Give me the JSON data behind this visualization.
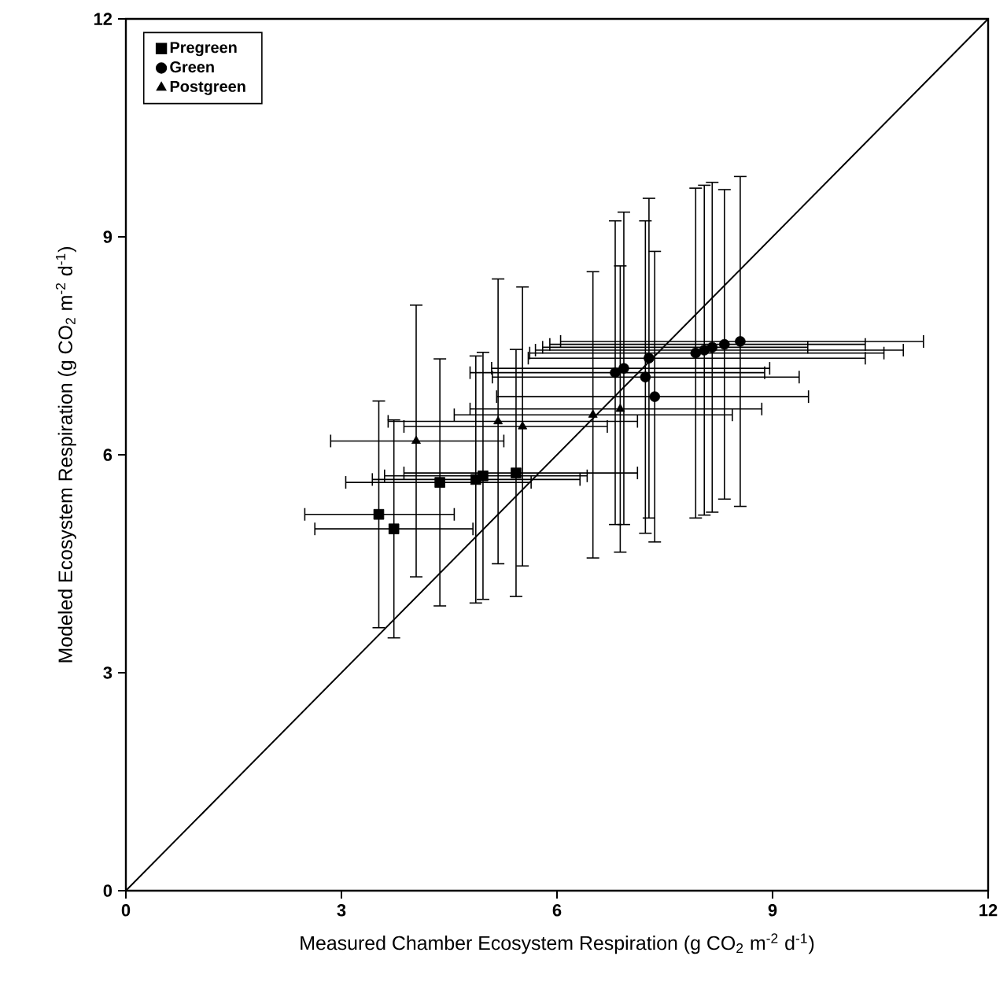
{
  "chart_data": {
    "type": "scatter",
    "xlabel": "Measured Chamber Ecosystem Respiration (g CO$_{2}$ m$^{-2}$ d$^{-1}$)",
    "ylabel": "Modeled Ecosystem Respiration (g CO$_{2}$ m$^{-2}$ d$^{-1}$)",
    "xlim": [
      0,
      12
    ],
    "ylim": [
      0,
      12
    ],
    "xticks": [
      0,
      3,
      6,
      9,
      12
    ],
    "yticks": [
      0,
      3,
      6,
      9,
      12
    ],
    "grid": false,
    "legend": "top left",
    "series": [
      {
        "name": "Pregreen",
        "color": "#000000",
        "marker": "square",
        "x": [
          3.52,
          3.73,
          4.37,
          4.87,
          4.97,
          5.43
        ],
        "values": [
          5.18,
          4.98,
          5.62,
          5.66,
          5.71,
          5.75
        ],
        "errors": [
          1.56,
          1.5,
          1.7,
          1.7,
          1.7,
          1.7
        ],
        "xerrors": [
          [
            2.49,
            4.57
          ],
          [
            2.63,
            4.83
          ],
          [
            3.06,
            5.64
          ],
          [
            3.43,
            6.32
          ],
          [
            3.6,
            6.42
          ],
          [
            3.87,
            7.12
          ]
        ]
      },
      {
        "name": "Green",
        "color": "#000000",
        "marker": "circle",
        "x": [
          6.81,
          6.93,
          7.23,
          7.28,
          7.36,
          7.93,
          8.05,
          8.16,
          8.33,
          8.55
        ],
        "values": [
          7.13,
          7.19,
          7.07,
          7.33,
          6.8,
          7.4,
          7.44,
          7.48,
          7.52,
          7.56
        ],
        "errors": [
          2.09,
          2.15,
          2.15,
          2.2,
          2.0,
          2.27,
          2.27,
          2.27,
          2.13,
          2.27
        ],
        "xerrors": [
          [
            4.79,
            8.89
          ],
          [
            5.09,
            8.96
          ],
          [
            5.1,
            9.37
          ],
          [
            5.6,
            10.29
          ],
          [
            5.16,
            9.5
          ],
          [
            5.62,
            10.55
          ],
          [
            5.7,
            10.82
          ],
          [
            5.8,
            9.49
          ],
          [
            5.9,
            10.29
          ],
          [
            6.05,
            11.1
          ]
        ]
      },
      {
        "name": "Postgreen",
        "color": "#000000",
        "marker": "triangle",
        "x": [
          4.04,
          5.18,
          5.52,
          6.5,
          6.88
        ],
        "values": [
          6.19,
          6.46,
          6.39,
          6.55,
          6.63
        ],
        "errors": [
          1.87,
          1.96,
          1.92,
          1.97,
          1.97
        ],
        "xerrors": [
          [
            2.85,
            5.26
          ],
          [
            3.65,
            7.12
          ],
          [
            3.87,
            6.7
          ],
          [
            4.57,
            8.44
          ],
          [
            4.79,
            8.85
          ]
        ]
      },
      {
        "type": "line",
        "color": "#000000",
        "marker": "none",
        "line_style": "solid",
        "x": [
          0,
          12
        ],
        "values": [
          0,
          12
        ]
      }
    ]
  }
}
